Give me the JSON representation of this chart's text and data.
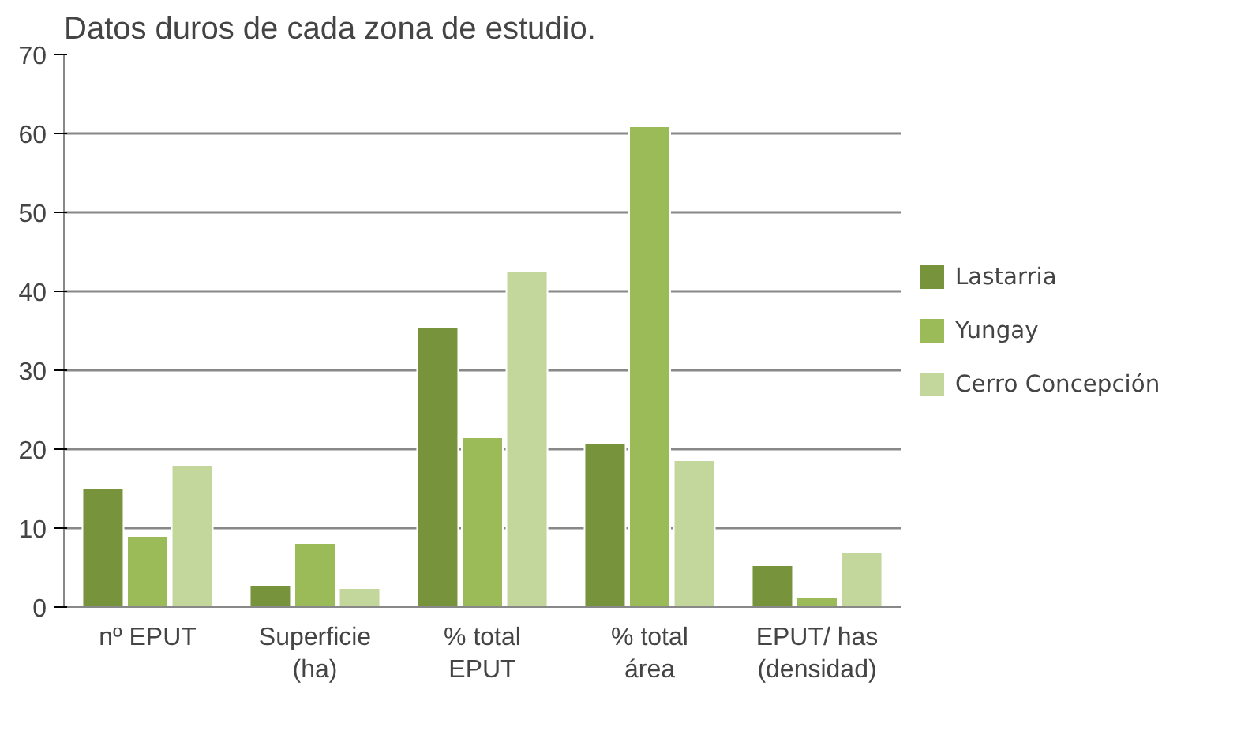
{
  "chart_data": {
    "type": "bar",
    "title": "Datos duros de cada zona de estudio.",
    "categories": [
      "nº EPUT",
      "Superficie\n(ha)",
      "% total\nEPUT",
      "% total\nárea",
      "EPUT/ has\n(densidad)"
    ],
    "series": [
      {
        "name": "Lastarria",
        "color": "#77933c",
        "values": [
          15,
          2.8,
          35.4,
          20.8,
          5.3
        ]
      },
      {
        "name": "Yungay",
        "color": "#9bbb59",
        "values": [
          9,
          8.1,
          21.5,
          60.9,
          1.2
        ]
      },
      {
        "name": "Cerro Concepción",
        "color": "#c3d69b",
        "values": [
          18,
          2.4,
          42.5,
          18.6,
          6.9
        ]
      }
    ],
    "ylim": [
      0,
      70
    ],
    "yticks": [
      0,
      10,
      20,
      30,
      40,
      50,
      60,
      70
    ],
    "grid": "y",
    "legend": "right"
  }
}
